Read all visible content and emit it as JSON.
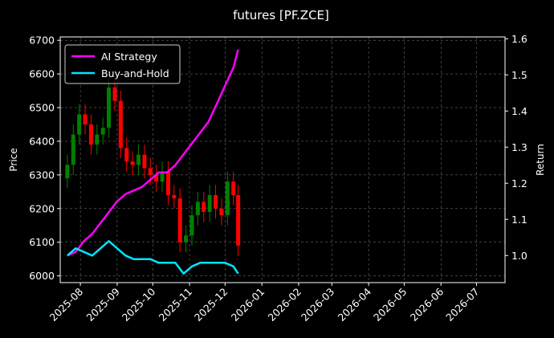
{
  "chart_data": {
    "type": "line",
    "title": "futures [PF.ZCE]",
    "ylabel": "Price",
    "y2label": "Return",
    "ylim": [
      5980,
      6710
    ],
    "y2lim": [
      0.925,
      1.605
    ],
    "xlim": [
      "2025-07-15",
      "2026-07-25"
    ],
    "grid": true,
    "legend": "top-left",
    "y_ticks": [
      6000,
      6100,
      6200,
      6300,
      6400,
      6500,
      6600,
      6700
    ],
    "y2_ticks": [
      1.0,
      1.1,
      1.2,
      1.3,
      1.4,
      1.5,
      1.6
    ],
    "x_ticks": [
      "2025-08",
      "2025-09",
      "2025-10",
      "2025-11",
      "2025-12",
      "2026-01",
      "2026-02",
      "2026-03",
      "2026-04",
      "2026-05",
      "2026-06",
      "2026-07"
    ],
    "x_tick_dates": [
      "2025-08-01",
      "2025-09-01",
      "2025-10-01",
      "2025-11-01",
      "2025-12-01",
      "2026-01-01",
      "2026-02-01",
      "2026-03-01",
      "2026-04-01",
      "2026-05-01",
      "2026-06-01",
      "2026-07-01"
    ],
    "series": [
      {
        "name": "AI Strategy",
        "color": "#ff00ff",
        "axis": "right",
        "x": [
          "2025-07-21",
          "2025-07-28",
          "2025-08-04",
          "2025-08-11",
          "2025-08-18",
          "2025-08-25",
          "2025-09-01",
          "2025-09-08",
          "2025-09-15",
          "2025-09-22",
          "2025-09-29",
          "2025-10-06",
          "2025-10-13",
          "2025-10-20",
          "2025-10-27",
          "2025-11-03",
          "2025-11-10",
          "2025-11-17",
          "2025-11-24",
          "2025-12-01",
          "2025-12-08",
          "2025-12-12"
        ],
        "values": [
          1.0,
          1.01,
          1.04,
          1.06,
          1.09,
          1.12,
          1.15,
          1.17,
          1.18,
          1.19,
          1.21,
          1.23,
          1.23,
          1.25,
          1.28,
          1.31,
          1.34,
          1.37,
          1.42,
          1.47,
          1.52,
          1.57
        ]
      },
      {
        "name": "Buy-and-Hold",
        "color": "#00e5ff",
        "axis": "right",
        "x": [
          "2025-07-21",
          "2025-07-28",
          "2025-08-04",
          "2025-08-11",
          "2025-08-18",
          "2025-08-25",
          "2025-09-01",
          "2025-09-08",
          "2025-09-15",
          "2025-09-22",
          "2025-09-29",
          "2025-10-06",
          "2025-10-13",
          "2025-10-20",
          "2025-10-27",
          "2025-11-03",
          "2025-11-10",
          "2025-11-17",
          "2025-11-24",
          "2025-12-01",
          "2025-12-08",
          "2025-12-12"
        ],
        "values": [
          1.0,
          1.02,
          1.01,
          1.0,
          1.02,
          1.04,
          1.02,
          1.0,
          0.99,
          0.99,
          0.99,
          0.98,
          0.98,
          0.98,
          0.95,
          0.97,
          0.98,
          0.98,
          0.98,
          0.98,
          0.97,
          0.95
        ]
      },
      {
        "name": "",
        "type": "candlestick",
        "axis": "left",
        "up_color": "#008000",
        "down_color": "#ff0000",
        "x": [
          "2025-07-21",
          "2025-07-26",
          "2025-07-31",
          "2025-08-05",
          "2025-08-10",
          "2025-08-15",
          "2025-08-20",
          "2025-08-25",
          "2025-08-30",
          "2025-09-04",
          "2025-09-09",
          "2025-09-14",
          "2025-09-19",
          "2025-09-24",
          "2025-09-29",
          "2025-10-04",
          "2025-10-09",
          "2025-10-14",
          "2025-10-19",
          "2025-10-24",
          "2025-10-29",
          "2025-11-03",
          "2025-11-08",
          "2025-11-13",
          "2025-11-18",
          "2025-11-23",
          "2025-11-28",
          "2025-12-03",
          "2025-12-08",
          "2025-12-12"
        ],
        "values": [
          6330,
          6420,
          6480,
          6450,
          6390,
          6420,
          6440,
          6560,
          6520,
          6380,
          6340,
          6330,
          6360,
          6320,
          6300,
          6280,
          6310,
          6240,
          6230,
          6100,
          6120,
          6180,
          6220,
          6190,
          6240,
          6200,
          6180,
          6280,
          6240,
          6090
        ]
      }
    ]
  }
}
